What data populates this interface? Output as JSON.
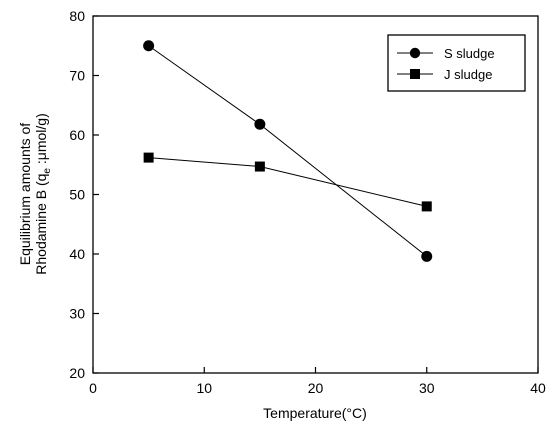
{
  "chart_data": {
    "type": "line",
    "xlabel": "Temperature(°C)",
    "ylabel_line1": "Equilibrium amounts of",
    "ylabel_line2_prefix": "Rhodamine B (q",
    "ylabel_line2_sub": "e",
    "ylabel_line2_suffix": " :μmol/g)",
    "xlim": [
      0,
      40
    ],
    "ylim": [
      20,
      80
    ],
    "xticks": [
      0,
      10,
      20,
      30,
      40
    ],
    "yticks": [
      20,
      30,
      40,
      50,
      60,
      70,
      80
    ],
    "grid": false,
    "legend_position": "top-right",
    "series": [
      {
        "name": "S sludge",
        "marker": "circle",
        "color": "#000000",
        "x": [
          5,
          15,
          30
        ],
        "y": [
          75.0,
          61.8,
          39.6
        ]
      },
      {
        "name": "J sludge",
        "marker": "square",
        "color": "#000000",
        "x": [
          5,
          15,
          30
        ],
        "y": [
          56.2,
          54.7,
          48.0
        ]
      }
    ]
  }
}
